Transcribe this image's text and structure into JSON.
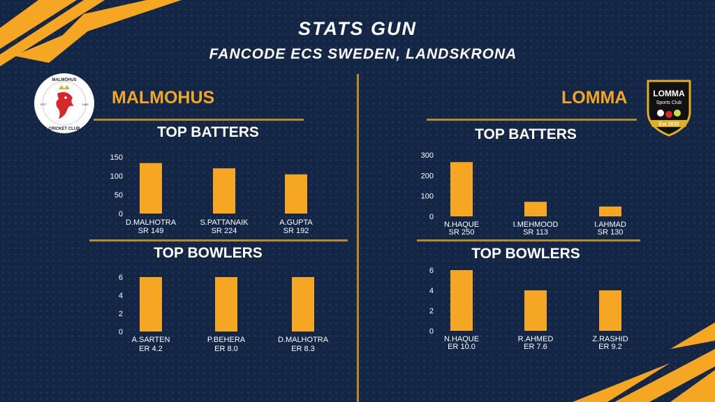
{
  "header": {
    "title": "STATS GUN",
    "subtitle": "FANCODE ECS SWEDEN, LANDSKRONA"
  },
  "teams": {
    "left": {
      "name": "MALMOHUS",
      "logo_text_top": "MALMÖHUS",
      "logo_text_bottom": "CRICKET CLUB",
      "logo_est_left": "EST",
      "logo_est_right": "1963"
    },
    "right": {
      "name": "LOMMA",
      "logo_text_top": "LOMMA",
      "logo_text_mid": "Sports Club",
      "logo_est": "Est 2020"
    }
  },
  "sections": {
    "left_batters": "TOP BATTERS",
    "left_bowlers": "TOP BOWLERS",
    "right_batters": "TOP BATTERS",
    "right_bowlers": "TOP BOWLERS"
  },
  "colors": {
    "background": "#132645",
    "accent": "#f5a623",
    "divider": "#b98a2a",
    "bar": "#f5a623",
    "text": "#ffffff"
  },
  "chart_data": [
    {
      "id": "malmohus_batters",
      "type": "bar",
      "title": "TOP BATTERS",
      "categories": [
        [
          "D.MALHOTRA",
          "SR 149"
        ],
        [
          "S.PATTANAIK",
          "SR 224"
        ],
        [
          "A.GUPTA",
          "SR 192"
        ]
      ],
      "values": [
        134,
        120,
        104
      ],
      "yticks": [
        0,
        50,
        100,
        150
      ],
      "ylim": [
        0,
        150
      ],
      "grid": false
    },
    {
      "id": "malmohus_bowlers",
      "type": "bar",
      "title": "TOP BOWLERS",
      "categories": [
        [
          "A.SARTEN",
          "ER 4.2"
        ],
        [
          "P.BEHERA",
          "ER 8.0"
        ],
        [
          "D.MALHOTRA",
          "ER 8.3"
        ]
      ],
      "values": [
        6,
        6,
        6
      ],
      "yticks": [
        0,
        2,
        4,
        6
      ],
      "ylim": [
        0,
        6
      ],
      "grid": false
    },
    {
      "id": "lomma_batters",
      "type": "bar",
      "title": "TOP BATTERS",
      "categories": [
        [
          "N.HAQUE",
          "SR 250"
        ],
        [
          "I.MEHMOOD",
          "SR 113"
        ],
        [
          "I.AHMAD",
          "SR 130"
        ]
      ],
      "values": [
        265,
        71,
        48
      ],
      "yticks": [
        0,
        100,
        200,
        300
      ],
      "ylim": [
        0,
        300
      ],
      "grid": false
    },
    {
      "id": "lomma_bowlers",
      "type": "bar",
      "title": "TOP BOWLERS",
      "categories": [
        [
          "N.HAQUE",
          "ER 10.0"
        ],
        [
          "R.AHMED",
          "ER 7.6"
        ],
        [
          "Z.RASHID",
          "ER 9.2"
        ]
      ],
      "values": [
        6,
        4,
        4
      ],
      "yticks": [
        0,
        2,
        4,
        6
      ],
      "ylim": [
        0,
        6
      ],
      "grid": false
    }
  ]
}
